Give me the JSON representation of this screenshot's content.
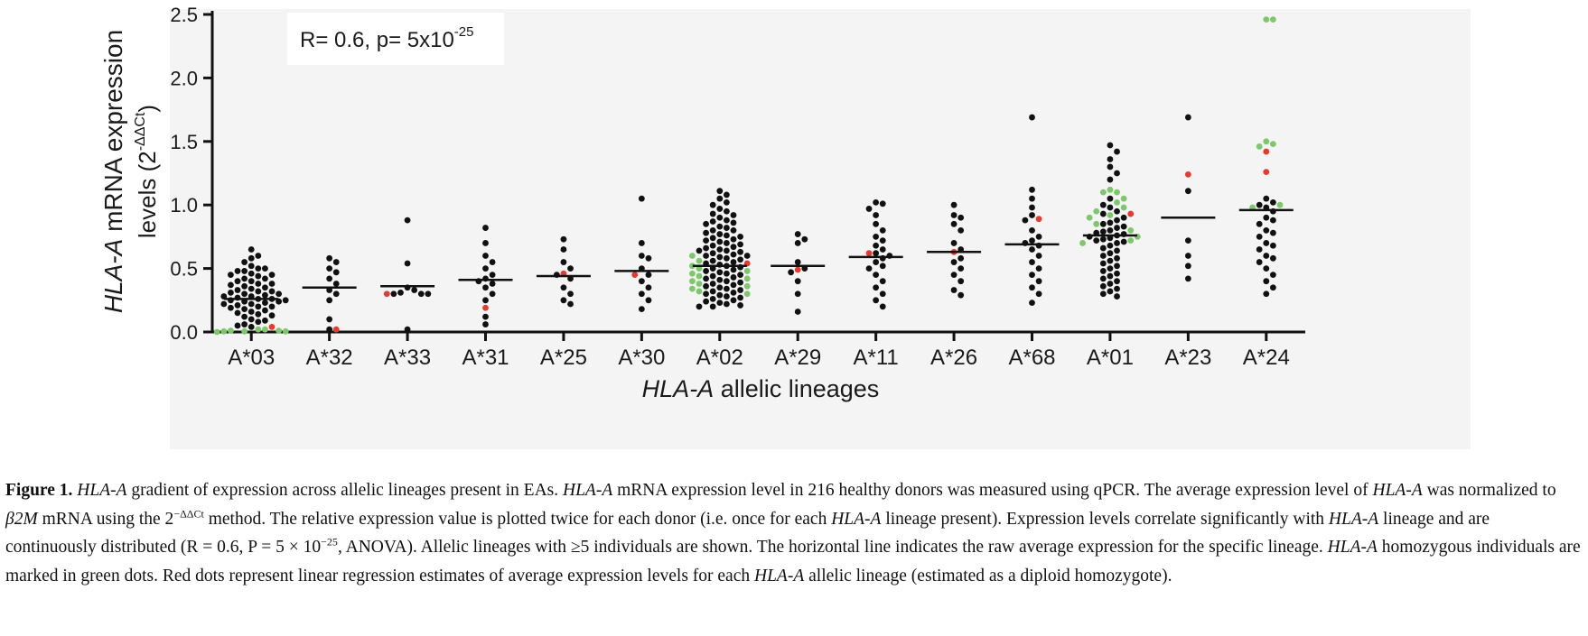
{
  "chart_data": {
    "type": "scatter",
    "subtype": "dot-strip plot with group means",
    "ylabel_main_italic": "HLA-A",
    "ylabel_main_rest": " mRNA expression",
    "ylabel_line2_prefix": "levels (2",
    "ylabel_line2_sup": "-ΔΔCt",
    "ylabel_line2_suffix": ")",
    "xlabel_italic": "HLA-A",
    "xlabel_rest": " allelic lineages",
    "annotation_prefix": "R= 0.6, p= 5x10",
    "annotation_sup": "-25",
    "ylim": [
      0,
      2.5
    ],
    "yticks": [
      "0.0",
      "0.5",
      "1.0",
      "1.5",
      "2.0",
      "2.5"
    ],
    "categories": [
      "A*03",
      "A*32",
      "A*33",
      "A*31",
      "A*25",
      "A*30",
      "A*02",
      "A*29",
      "A*11",
      "A*26",
      "A*68",
      "A*01",
      "A*23",
      "A*24"
    ],
    "colors": {
      "black": "#111111",
      "green": "#7cc86a",
      "red": "#e63a2e",
      "mean": "#111111"
    },
    "legend_note": "",
    "groups": [
      {
        "lineage": "A*03",
        "mean": 0.26,
        "black": [
          0.65,
          0.6,
          0.58,
          0.55,
          0.52,
          0.5,
          0.5,
          0.48,
          0.48,
          0.46,
          0.45,
          0.45,
          0.44,
          0.42,
          0.42,
          0.4,
          0.4,
          0.38,
          0.38,
          0.37,
          0.36,
          0.35,
          0.34,
          0.33,
          0.32,
          0.32,
          0.31,
          0.3,
          0.3,
          0.29,
          0.28,
          0.28,
          0.27,
          0.26,
          0.26,
          0.25,
          0.25,
          0.24,
          0.24,
          0.23,
          0.22,
          0.22,
          0.21,
          0.2,
          0.2,
          0.19,
          0.18,
          0.17,
          0.16,
          0.15,
          0.14,
          0.13,
          0.12,
          0.1,
          0.09,
          0.08,
          0.06,
          0.05,
          0.04
        ],
        "green": [
          0.02,
          0.02,
          0.01,
          0.01,
          0.005,
          0.005,
          0.005,
          0.0
        ],
        "red": [
          0.04
        ]
      },
      {
        "lineage": "A*32",
        "mean": 0.35,
        "black": [
          0.58,
          0.55,
          0.5,
          0.47,
          0.42,
          0.38,
          0.33,
          0.3,
          0.25,
          0.1,
          0.02
        ],
        "green": [],
        "red": [
          0.02
        ]
      },
      {
        "lineage": "A*33",
        "mean": 0.36,
        "black": [
          0.88,
          0.54,
          0.35,
          0.33,
          0.31,
          0.3,
          0.3,
          0.3,
          0.02
        ],
        "green": [],
        "red": [
          0.3
        ]
      },
      {
        "lineage": "A*31",
        "mean": 0.41,
        "black": [
          0.82,
          0.7,
          0.6,
          0.55,
          0.5,
          0.45,
          0.42,
          0.4,
          0.38,
          0.35,
          0.3,
          0.25,
          0.12,
          0.06
        ],
        "green": [],
        "red": [
          0.19
        ]
      },
      {
        "lineage": "A*25",
        "mean": 0.44,
        "black": [
          0.73,
          0.65,
          0.55,
          0.5,
          0.45,
          0.42,
          0.35,
          0.3,
          0.25,
          0.22
        ],
        "green": [],
        "red": [
          0.46
        ]
      },
      {
        "lineage": "A*30",
        "mean": 0.48,
        "black": [
          1.05,
          0.7,
          0.6,
          0.58,
          0.5,
          0.45,
          0.4,
          0.35,
          0.3,
          0.25,
          0.18
        ],
        "green": [],
        "red": [
          0.45
        ]
      },
      {
        "lineage": "A*02",
        "mean": 0.52,
        "black": [
          1.11,
          1.08,
          1.05,
          1.02,
          1.0,
          0.97,
          0.95,
          0.93,
          0.92,
          0.9,
          0.88,
          0.87,
          0.86,
          0.85,
          0.83,
          0.82,
          0.8,
          0.8,
          0.78,
          0.77,
          0.76,
          0.75,
          0.74,
          0.73,
          0.72,
          0.71,
          0.7,
          0.69,
          0.68,
          0.67,
          0.66,
          0.65,
          0.64,
          0.64,
          0.63,
          0.62,
          0.61,
          0.6,
          0.6,
          0.59,
          0.58,
          0.57,
          0.56,
          0.55,
          0.54,
          0.53,
          0.52,
          0.51,
          0.5,
          0.49,
          0.48,
          0.47,
          0.46,
          0.45,
          0.44,
          0.43,
          0.42,
          0.41,
          0.4,
          0.39,
          0.38,
          0.37,
          0.36,
          0.35,
          0.34,
          0.33,
          0.32,
          0.31,
          0.3,
          0.29,
          0.28,
          0.27,
          0.26,
          0.25,
          0.24,
          0.23,
          0.22,
          0.21,
          0.2,
          0.2
        ],
        "green": [
          0.6,
          0.56,
          0.52,
          0.5,
          0.48,
          0.46,
          0.44,
          0.42,
          0.4,
          0.38,
          0.36,
          0.34,
          0.32,
          0.3
        ],
        "red": [
          0.54
        ]
      },
      {
        "lineage": "A*29",
        "mean": 0.52,
        "black": [
          0.77,
          0.73,
          0.7,
          0.55,
          0.5,
          0.47,
          0.4,
          0.3,
          0.16
        ],
        "green": [],
        "red": [
          0.49
        ]
      },
      {
        "lineage": "A*11",
        "mean": 0.59,
        "black": [
          1.02,
          1.01,
          0.97,
          0.92,
          0.85,
          0.8,
          0.75,
          0.72,
          0.68,
          0.65,
          0.62,
          0.6,
          0.58,
          0.55,
          0.52,
          0.5,
          0.45,
          0.4,
          0.35,
          0.3,
          0.25,
          0.2
        ],
        "green": [],
        "red": [
          0.62
        ]
      },
      {
        "lineage": "A*26",
        "mean": 0.63,
        "black": [
          1.0,
          0.92,
          0.9,
          0.85,
          0.8,
          0.7,
          0.65,
          0.58,
          0.55,
          0.5,
          0.45,
          0.4,
          0.33,
          0.29
        ],
        "green": [],
        "red": [
          0.63
        ]
      },
      {
        "lineage": "A*68",
        "mean": 0.69,
        "black": [
          1.69,
          1.12,
          1.05,
          0.98,
          0.92,
          0.88,
          0.8,
          0.75,
          0.72,
          0.7,
          0.68,
          0.65,
          0.6,
          0.55,
          0.5,
          0.45,
          0.4,
          0.35,
          0.3,
          0.23
        ],
        "green": [],
        "red": [
          0.89
        ]
      },
      {
        "lineage": "A*01",
        "mean": 0.76,
        "black": [
          1.47,
          1.42,
          1.36,
          1.3,
          1.25,
          1.2,
          1.05,
          1.0,
          0.98,
          0.95,
          0.93,
          0.9,
          0.88,
          0.86,
          0.85,
          0.83,
          0.82,
          0.8,
          0.79,
          0.78,
          0.77,
          0.76,
          0.75,
          0.74,
          0.73,
          0.72,
          0.71,
          0.7,
          0.68,
          0.66,
          0.64,
          0.62,
          0.6,
          0.58,
          0.56,
          0.54,
          0.52,
          0.5,
          0.48,
          0.46,
          0.44,
          0.42,
          0.4,
          0.38,
          0.36,
          0.34,
          0.32,
          0.3,
          0.28
        ],
        "green": [
          1.12,
          1.1,
          1.1,
          1.05,
          1.02,
          0.98,
          0.95,
          0.92,
          0.9,
          0.85,
          0.8,
          0.75,
          0.72,
          0.7
        ],
        "red": [
          0.93
        ]
      },
      {
        "lineage": "A*23",
        "mean": 0.9,
        "black": [
          1.69,
          1.11,
          0.72,
          0.6,
          0.52,
          0.42
        ],
        "green": [],
        "red": [
          1.24
        ]
      },
      {
        "lineage": "A*24",
        "mean": 0.96,
        "black": [
          1.05,
          1.02,
          1.0,
          0.98,
          0.95,
          0.9,
          0.88,
          0.85,
          0.8,
          0.78,
          0.75,
          0.7,
          0.68,
          0.65,
          0.6,
          0.58,
          0.55,
          0.5,
          0.45,
          0.4,
          0.35,
          0.3
        ],
        "green": [
          2.46,
          2.46,
          1.5,
          1.48,
          1.46,
          1.0,
          0.98
        ],
        "red": [
          1.26,
          1.42
        ]
      }
    ]
  },
  "caption": {
    "label": "Figure 1.",
    "s1_it": "HLA-A",
    "s1": " gradient of expression across allelic lineages present in EAs. ",
    "s2_it": "HLA-A",
    "s2": " mRNA expression level in 216 healthy donors was measured using qPCR. The average expression level of ",
    "s3_it": "HLA-A",
    "s3": " was normalized to ",
    "s4_it": "β2M",
    "s4": " mRNA using the 2",
    "s4_sup": "−ΔΔCt",
    "s5": " method. The relative expression value is plotted twice for each donor (i.e. once for each ",
    "s5_it": "HLA-A",
    "s6": " lineage present). Expression levels correlate significantly with ",
    "s6_it": "HLA-A",
    "s7": " lineage and are continuously distributed (R = 0.6, P = 5 × 10",
    "s7_sup": "−25",
    "s8": ", ANOVA). Allelic lineages with ≥5 individuals are shown. The horizontal line indicates the raw average expression for the specific lineage. ",
    "s8_it": "HLA-A",
    "s9": " homozygous individuals are marked in green dots. Red dots represent linear regression estimates of average expression levels for each ",
    "s9_it": "HLA-A",
    "s10": " allelic lineage (estimated as a diploid homozygote)."
  }
}
